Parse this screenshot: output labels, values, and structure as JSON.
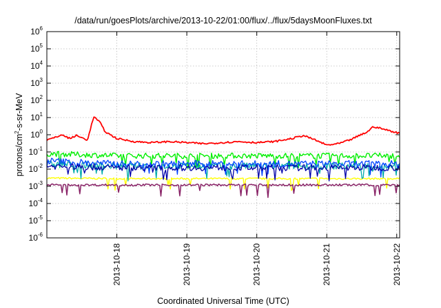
{
  "chart_data": {
    "type": "line",
    "title": "/data/run/goesPlots/archive/2013-10-22/01:00/flux/../flux/5daysMoonFluxes.txt",
    "xlabel": "Coordinated Universal Time (UTC)",
    "ylabel_prefix": "protons/cm",
    "ylabel_exp": "2",
    "ylabel_suffix": "-s-sr-MeV",
    "yscale": "log",
    "ylim": [
      1e-06,
      1000000.0
    ],
    "xlim": [
      "2013-10-17 00:00",
      "2013-10-22 01:00"
    ],
    "grid": true,
    "y_ticks": [
      {
        "base": "10",
        "exp": "-6",
        "value": 1e-06
      },
      {
        "base": "10",
        "exp": "-5",
        "value": 1e-05
      },
      {
        "base": "10",
        "exp": "-4",
        "value": 0.0001
      },
      {
        "base": "10",
        "exp": "-3",
        "value": 0.001
      },
      {
        "base": "10",
        "exp": "-2",
        "value": 0.01
      },
      {
        "base": "10",
        "exp": "-1",
        "value": 0.1
      },
      {
        "base": "10",
        "exp": "0",
        "value": 1
      },
      {
        "base": "10",
        "exp": "1",
        "value": 10
      },
      {
        "base": "10",
        "exp": "2",
        "value": 100
      },
      {
        "base": "10",
        "exp": "3",
        "value": 1000
      },
      {
        "base": "10",
        "exp": "4",
        "value": 10000
      },
      {
        "base": "10",
        "exp": "5",
        "value": 100000
      },
      {
        "base": "10",
        "exp": "6",
        "value": 1000000
      }
    ],
    "x_ticks": [
      {
        "label": "2013-10-18",
        "value": "2013-10-18 00:00"
      },
      {
        "label": "2013-10-19",
        "value": "2013-10-19 00:00"
      },
      {
        "label": "2013-10-20",
        "value": "2013-10-20 00:00"
      },
      {
        "label": "2013-10-21",
        "value": "2013-10-21 00:00"
      },
      {
        "label": "2013-10-22",
        "value": "2013-10-22 00:00"
      }
    ],
    "series": [
      {
        "color": "#ff0000",
        "values": [
          [
            "2013-10-17 00:00",
            0.5
          ],
          [
            "2013-10-17 03:00",
            0.7
          ],
          [
            "2013-10-17 05:00",
            1.0
          ],
          [
            "2013-10-17 08:00",
            0.6
          ],
          [
            "2013-10-17 10:00",
            0.9
          ],
          [
            "2013-10-17 14:00",
            0.5
          ],
          [
            "2013-10-17 16:00",
            11
          ],
          [
            "2013-10-17 18:00",
            6
          ],
          [
            "2013-10-17 20:00",
            1.5
          ],
          [
            "2013-10-18 00:00",
            0.6
          ],
          [
            "2013-10-18 06:00",
            0.4
          ],
          [
            "2013-10-18 12:00",
            0.35
          ],
          [
            "2013-10-18 18:00",
            0.4
          ],
          [
            "2013-10-19 00:00",
            0.35
          ],
          [
            "2013-10-19 06:00",
            0.3
          ],
          [
            "2013-10-19 12:00",
            0.35
          ],
          [
            "2013-10-19 18:00",
            0.4
          ],
          [
            "2013-10-20 00:00",
            0.35
          ],
          [
            "2013-10-20 06:00",
            0.4
          ],
          [
            "2013-10-20 12:00",
            0.6
          ],
          [
            "2013-10-20 16:00",
            0.9
          ],
          [
            "2013-10-20 20:00",
            0.5
          ],
          [
            "2013-10-21 00:00",
            0.25
          ],
          [
            "2013-10-21 04:00",
            0.3
          ],
          [
            "2013-10-21 08:00",
            0.5
          ],
          [
            "2013-10-21 14:00",
            1.5
          ],
          [
            "2013-10-21 16:00",
            3.0
          ],
          [
            "2013-10-21 20:00",
            2.0
          ],
          [
            "2013-10-22 01:00",
            1.2
          ]
        ]
      },
      {
        "color": "#00ee00",
        "base": 0.09,
        "spread": 0.22,
        "spikes": [
          0.5,
          0.3
        ],
        "values": [
          [
            "2013-10-17 00:00",
            0.08
          ],
          [
            "2013-10-18 00:00",
            0.06
          ],
          [
            "2013-10-19 00:00",
            0.06
          ],
          [
            "2013-10-20 00:00",
            0.06
          ],
          [
            "2013-10-21 00:00",
            0.06
          ],
          [
            "2013-10-22 01:00",
            0.06
          ]
        ]
      },
      {
        "color": "#00aaaa",
        "values": [
          [
            "2013-10-17 00:00",
            0.02
          ],
          [
            "2013-10-18 00:00",
            0.015
          ],
          [
            "2013-10-19 00:00",
            0.015
          ],
          [
            "2013-10-20 00:00",
            0.015
          ],
          [
            "2013-10-21 00:00",
            0.015
          ],
          [
            "2013-10-22 01:00",
            0.015
          ]
        ]
      },
      {
        "color": "#0044ff",
        "values": [
          [
            "2013-10-17 00:00",
            0.03
          ],
          [
            "2013-10-18 00:00",
            0.02
          ],
          [
            "2013-10-19 00:00",
            0.02
          ],
          [
            "2013-10-20 00:00",
            0.02
          ],
          [
            "2013-10-21 00:00",
            0.02
          ],
          [
            "2013-10-22 01:00",
            0.02
          ]
        ]
      },
      {
        "color": "#0000aa",
        "values": [
          [
            "2013-10-17 00:00",
            0.015
          ],
          [
            "2013-10-18 00:00",
            0.012
          ],
          [
            "2013-10-19 00:00",
            0.012
          ],
          [
            "2013-10-20 00:00",
            0.012
          ],
          [
            "2013-10-21 00:00",
            0.012
          ],
          [
            "2013-10-22 01:00",
            0.012
          ]
        ]
      },
      {
        "color": "#ffff00",
        "values": [
          [
            "2013-10-17 00:00",
            0.003
          ],
          [
            "2013-10-18 00:00",
            0.0028
          ],
          [
            "2013-10-19 00:00",
            0.0028
          ],
          [
            "2013-10-20 00:00",
            0.0028
          ],
          [
            "2013-10-21 00:00",
            0.0028
          ],
          [
            "2013-10-22 01:00",
            0.0028
          ]
        ]
      },
      {
        "color": "#882266",
        "values": [
          [
            "2013-10-17 00:00",
            0.0012
          ],
          [
            "2013-10-18 00:00",
            0.0012
          ],
          [
            "2013-10-19 00:00",
            0.0012
          ],
          [
            "2013-10-20 00:00",
            0.0012
          ],
          [
            "2013-10-21 00:00",
            0.0012
          ],
          [
            "2013-10-22 01:00",
            0.0012
          ]
        ]
      }
    ]
  }
}
